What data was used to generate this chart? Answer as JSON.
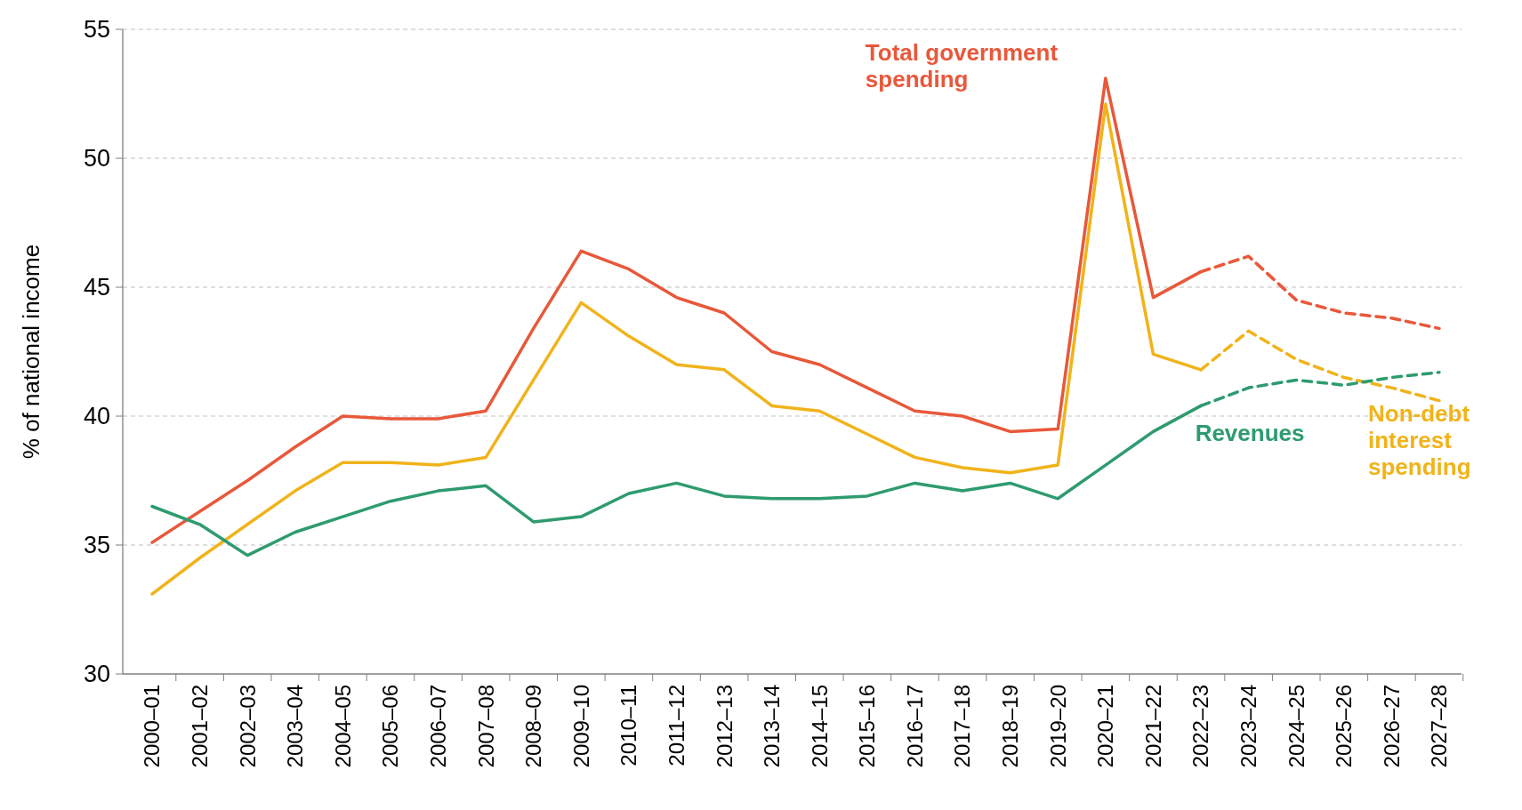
{
  "chart_data": {
    "type": "line",
    "ylabel": "% of national income",
    "categories": [
      "2000–01",
      "2001–02",
      "2002–03",
      "2003–04",
      "2004–05",
      "2005–06",
      "2006–07",
      "2007–08",
      "2008–09",
      "2009–10",
      "2010–11",
      "2011–12",
      "2012–13",
      "2013–14",
      "2014–15",
      "2015–16",
      "2016–17",
      "2017–18",
      "2018–19",
      "2019–20",
      "2020–21",
      "2021–22",
      "2022–23",
      "2023–24",
      "2024–25",
      "2025–26",
      "2026–27",
      "2027–28"
    ],
    "ylim": [
      30,
      55
    ],
    "yticks": [
      30,
      35,
      40,
      45,
      50,
      55
    ],
    "grid": "y",
    "marker": "none",
    "series": [
      {
        "name": "Total government spending",
        "color": "#e8583a",
        "line_style": "solid",
        "values": [
          35.1,
          36.3,
          37.5,
          38.8,
          40.0,
          39.9,
          39.9,
          40.2,
          43.4,
          46.4,
          45.7,
          44.6,
          44.0,
          42.5,
          42.0,
          41.1,
          40.2,
          40.0,
          39.4,
          39.5,
          53.1,
          44.6,
          45.6,
          null,
          null,
          null,
          null,
          null
        ]
      },
      {
        "color": "#e8583a",
        "line_style": "dashed",
        "values": [
          null,
          null,
          null,
          null,
          null,
          null,
          null,
          null,
          null,
          null,
          null,
          null,
          null,
          null,
          null,
          null,
          null,
          null,
          null,
          null,
          null,
          null,
          45.6,
          46.2,
          44.5,
          44.0,
          43.8,
          43.4
        ]
      },
      {
        "name": "Non-debt interest spending",
        "color": "#f0b31a",
        "line_style": "solid",
        "values": [
          33.1,
          34.5,
          35.8,
          37.1,
          38.2,
          38.2,
          38.1,
          38.4,
          41.4,
          44.4,
          43.1,
          42.0,
          41.8,
          40.4,
          40.2,
          39.3,
          38.4,
          38.0,
          37.8,
          38.1,
          52.1,
          42.4,
          41.8,
          null,
          null,
          null,
          null,
          null
        ]
      },
      {
        "color": "#f0b31a",
        "line_style": "dashed",
        "values": [
          null,
          null,
          null,
          null,
          null,
          null,
          null,
          null,
          null,
          null,
          null,
          null,
          null,
          null,
          null,
          null,
          null,
          null,
          null,
          null,
          null,
          null,
          41.8,
          43.3,
          42.2,
          41.5,
          41.1,
          40.6
        ]
      },
      {
        "name": "Revenues",
        "color": "#2e9b6f",
        "line_style": "solid",
        "values": [
          36.5,
          35.8,
          34.6,
          35.5,
          36.1,
          36.7,
          37.1,
          37.3,
          35.9,
          36.1,
          37.0,
          37.4,
          36.9,
          36.8,
          36.8,
          36.9,
          37.4,
          37.1,
          37.4,
          36.8,
          38.1,
          39.4,
          40.4,
          null,
          null,
          null,
          null,
          null
        ]
      },
      {
        "color": "#2e9b6f",
        "line_style": "dashed",
        "values": [
          null,
          null,
          null,
          null,
          null,
          null,
          null,
          null,
          null,
          null,
          null,
          null,
          null,
          null,
          null,
          null,
          null,
          null,
          null,
          null,
          null,
          null,
          40.4,
          41.1,
          41.4,
          41.2,
          41.5,
          41.7
        ]
      }
    ]
  }
}
